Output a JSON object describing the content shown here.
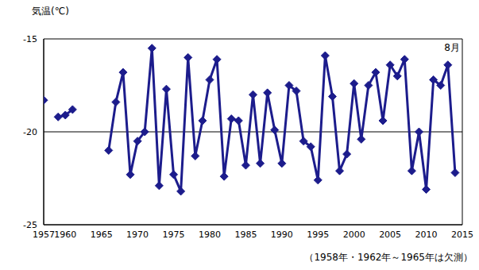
{
  "chart_data": {
    "type": "line",
    "y_label": "気温(℃)",
    "annotation": "8月",
    "note": "（1958年・1962年～1965年は欠測）",
    "x": [
      1957,
      1958,
      1959,
      1960,
      1961,
      1962,
      1963,
      1964,
      1965,
      1966,
      1967,
      1968,
      1969,
      1970,
      1971,
      1972,
      1973,
      1974,
      1975,
      1976,
      1977,
      1978,
      1979,
      1980,
      1981,
      1982,
      1983,
      1984,
      1985,
      1986,
      1987,
      1988,
      1989,
      1990,
      1991,
      1992,
      1993,
      1994,
      1995,
      1996,
      1997,
      1998,
      1999,
      2000,
      2001,
      2002,
      2003,
      2004,
      2005,
      2006,
      2007,
      2008,
      2009,
      2010,
      2011,
      2012,
      2013,
      2014
    ],
    "values": [
      -18.3,
      null,
      -19.2,
      -19.1,
      -18.8,
      null,
      null,
      null,
      null,
      -21.0,
      -18.4,
      -16.8,
      -22.3,
      -20.5,
      -20.0,
      -15.5,
      -22.9,
      -17.7,
      -22.3,
      -23.2,
      -16.0,
      -21.3,
      -19.4,
      -17.2,
      -16.1,
      -22.4,
      -19.3,
      -19.4,
      -21.8,
      -18.0,
      -21.7,
      -17.9,
      -19.9,
      -21.7,
      -17.5,
      -17.8,
      -20.5,
      -20.8,
      -22.6,
      -15.9,
      -18.1,
      -22.1,
      -21.2,
      -17.4,
      -20.4,
      -17.5,
      -16.8,
      -19.4,
      -16.4,
      -17.0,
      -16.1,
      -22.1,
      -20.0,
      -23.1,
      -17.2,
      -17.5,
      -16.4,
      -22.2
    ],
    "color": "#1c1c8c",
    "marker": "diamond",
    "xlim": [
      1957,
      2015
    ],
    "xticks": [
      1957,
      1960,
      1965,
      1970,
      1975,
      1980,
      1985,
      1990,
      1995,
      2000,
      2005,
      2010,
      2015
    ],
    "ylim": [
      -25,
      -15
    ],
    "yticks": [
      -25,
      -20,
      -15
    ],
    "grid": true
  }
}
